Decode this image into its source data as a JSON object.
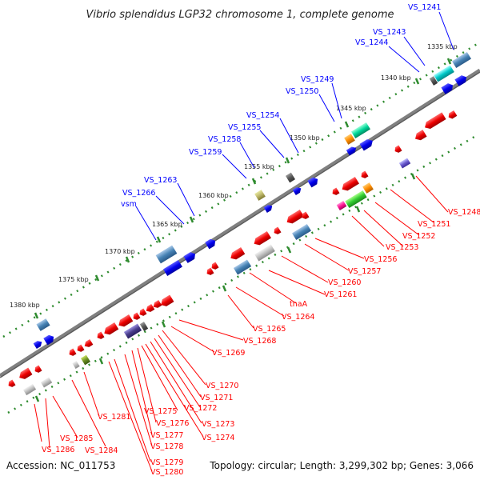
{
  "title": "Vibrio splendidus LGP32 chromosome 1, complete genome",
  "accession": "Accession: NC_011753",
  "summary": "Topology: circular; Length: 3,299,302 bp; Genes: 3,066",
  "colors": {
    "forward_label": "#0000ff",
    "reverse_label": "#ff0000",
    "backbone": "#808080",
    "ticks": "#2e8b2e"
  },
  "kbp_ticks": [
    "1335 kbp",
    "1340 kbp",
    "1345 kbp",
    "1350 kbp",
    "1355 kbp",
    "1360 kbp",
    "1365 kbp",
    "1370 kbp",
    "1375 kbp",
    "1380 kbp"
  ],
  "forward_labels": [
    "VS_1241",
    "VS_1243",
    "VS_1244",
    "VS_1249",
    "VS_1250",
    "VS_1254",
    "VS_1255",
    "VS_1258",
    "VS_1259",
    "VS_1263",
    "VS_1266",
    "vsm"
  ],
  "reverse_labels": [
    "VS_1248",
    "VS_1251",
    "VS_1252",
    "VS_1253",
    "VS_1256",
    "VS_1257",
    "VS_1260",
    "VS_1261",
    "tnaA",
    "VS_1264",
    "VS_1265",
    "VS_1268",
    "VS_1269",
    "VS_1270",
    "VS_1271",
    "VS_1272",
    "VS_1273",
    "VS_1274",
    "VS_1275",
    "VS_1276",
    "VS_1277",
    "VS_1278",
    "VS_1279",
    "VS_1280",
    "VS_1281",
    "VS_1284",
    "VS_1285",
    "VS_1286"
  ]
}
